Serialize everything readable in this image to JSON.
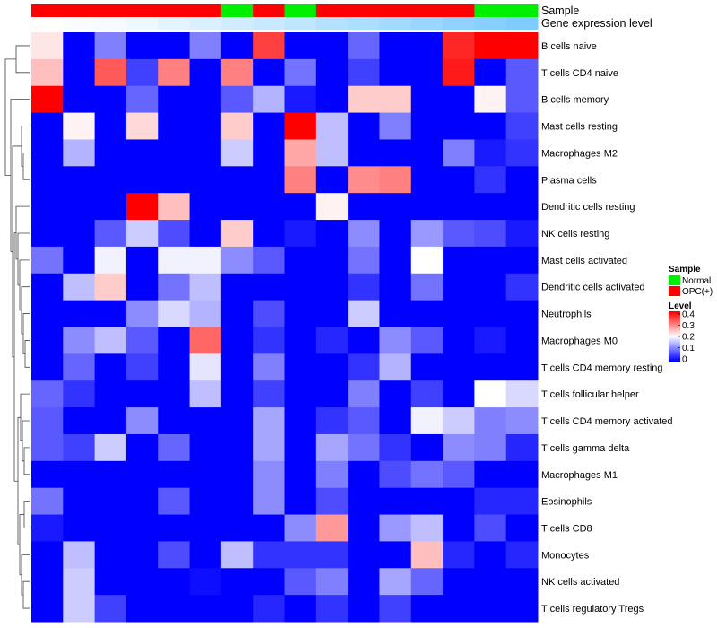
{
  "chart_data": {
    "type": "heatmap",
    "annotation_rows": [
      {
        "name": "Sample",
        "values": [
          "OPC(+)",
          "OPC(+)",
          "OPC(+)",
          "OPC(+)",
          "OPC(+)",
          "OPC(+)",
          "Normal",
          "OPC(+)",
          "Normal",
          "OPC(+)",
          "OPC(+)",
          "OPC(+)",
          "OPC(+)",
          "OPC(+)",
          "Normal",
          "Normal"
        ]
      },
      {
        "name": "Gene expression level",
        "values": [
          0.0,
          0.01,
          0.02,
          0.04,
          0.06,
          0.08,
          0.1,
          0.12,
          0.14,
          0.16,
          0.18,
          0.2,
          0.22,
          0.24,
          0.26,
          0.28
        ]
      }
    ],
    "row_labels": [
      "B cells naive",
      "T cells CD4 naive",
      "B cells memory",
      "Mast cells resting",
      "Macrophages M2",
      "Plasma cells",
      "Dendritic cells resting",
      "NK cells resting",
      "Mast cells activated",
      "Dendritic cells activated",
      "Neutrophils",
      "Macrophages M0",
      "T cells CD4 memory resting",
      "T cells follicular helper",
      "T cells CD4 memory activated",
      "T cells gamma delta",
      "Macrophages M1",
      "Eosinophils",
      "T cells CD8",
      "Monocytes",
      "NK cells activated",
      "T cells regulatory  Tregs"
    ],
    "values": [
      [
        0.22,
        0,
        0.1,
        0,
        0,
        0.1,
        0,
        0.35,
        0,
        0,
        0.08,
        0,
        0,
        0.37,
        0.4,
        0.4
      ],
      [
        0.25,
        0,
        0.33,
        0.05,
        0.3,
        0,
        0.3,
        0,
        0.09,
        0,
        0.05,
        0,
        0,
        0.38,
        0,
        0.07
      ],
      [
        0.4,
        0,
        0,
        0.08,
        0,
        0,
        0.07,
        0.14,
        0.02,
        0,
        0.24,
        0.24,
        0,
        0,
        0.21,
        0.07
      ],
      [
        0,
        0.21,
        0,
        0.23,
        0,
        0,
        0.24,
        0,
        0.4,
        0.15,
        0,
        0.1,
        0,
        0,
        0,
        0.05
      ],
      [
        0,
        0.14,
        0,
        0,
        0,
        0,
        0.16,
        0,
        0.27,
        0.15,
        0,
        0,
        0,
        0.1,
        0.02,
        0.04
      ],
      [
        0,
        0,
        0,
        0,
        0,
        0,
        0,
        0,
        0.3,
        0,
        0.29,
        0.3,
        0,
        0,
        0.04,
        0
      ],
      [
        0,
        0,
        0,
        0.4,
        0.25,
        0,
        0,
        0,
        0,
        0.21,
        0,
        0,
        0,
        0,
        0,
        0
      ],
      [
        0,
        0,
        0.07,
        0.16,
        0.06,
        0,
        0.24,
        0,
        0.02,
        0,
        0.11,
        0,
        0.12,
        0.07,
        0.06,
        0.02
      ],
      [
        0.09,
        0,
        0.19,
        0,
        0.19,
        0.19,
        0.11,
        0.07,
        0,
        0,
        0.09,
        0,
        0.2,
        0,
        0,
        0
      ],
      [
        0,
        0.15,
        0.24,
        0,
        0.09,
        0.15,
        0,
        0,
        0,
        0,
        0.04,
        0,
        0.09,
        0,
        0,
        0.04
      ],
      [
        0,
        0,
        0,
        0.11,
        0.17,
        0.14,
        0,
        0.06,
        0,
        0,
        0.16,
        0,
        0,
        0,
        0,
        0
      ],
      [
        0,
        0.11,
        0.15,
        0.07,
        0,
        0.32,
        0,
        0.04,
        0,
        0.03,
        0,
        0.11,
        0.07,
        0,
        0.02,
        0
      ],
      [
        0,
        0.08,
        0,
        0.05,
        0,
        0.18,
        0,
        0.1,
        0,
        0,
        0.04,
        0.14,
        0,
        0,
        0,
        0
      ],
      [
        0.08,
        0.04,
        0,
        0,
        0,
        0.15,
        0,
        0.05,
        0,
        0,
        0.1,
        0,
        0.05,
        0,
        0.2,
        0.17
      ],
      [
        0.07,
        0,
        0,
        0.11,
        0,
        0,
        0,
        0.13,
        0,
        0.04,
        0.07,
        0,
        0.19,
        0.16,
        0.1,
        0.11
      ],
      [
        0.07,
        0.05,
        0.16,
        0,
        0.08,
        0,
        0,
        0.13,
        0,
        0.13,
        0.09,
        0.04,
        0,
        0.11,
        0.1,
        0.03
      ],
      [
        0,
        0,
        0,
        0,
        0,
        0,
        0,
        0.11,
        0,
        0.1,
        0,
        0.06,
        0.09,
        0.07,
        0,
        0
      ],
      [
        0.09,
        0,
        0,
        0,
        0.07,
        0,
        0,
        0.11,
        0,
        0.06,
        0,
        0,
        0,
        0,
        0.03,
        0.03
      ],
      [
        0.02,
        0,
        0,
        0,
        0,
        0,
        0,
        0,
        0.11,
        0.28,
        0,
        0.12,
        0.15,
        0,
        0.06,
        0
      ],
      [
        0,
        0.15,
        0,
        0,
        0.06,
        0,
        0.15,
        0.04,
        0.04,
        0.04,
        0,
        0,
        0.25,
        0.03,
        0,
        0.03
      ],
      [
        0,
        0.16,
        0,
        0,
        0,
        0.01,
        0,
        0,
        0.07,
        0.1,
        0,
        0.13,
        0.08,
        0,
        0,
        0
      ],
      [
        0,
        0.16,
        0.05,
        0,
        0,
        0,
        0,
        0.03,
        0,
        0.04,
        0,
        0.05,
        0,
        0,
        0,
        0
      ]
    ],
    "color_scale": {
      "min": 0,
      "max": 0.4,
      "low": "#0000ff",
      "mid": "#ffffff",
      "high": "#ff0000"
    },
    "legend": {
      "placement": "right",
      "sample_title": "Sample",
      "sample_items": [
        {
          "label": "Normal",
          "color": "#00ee00"
        },
        {
          "label": "OPC(+)",
          "color": "#ff0000"
        }
      ],
      "level_title": "Level",
      "level_ticks": [
        "0.4",
        "0.3",
        "0.2",
        "0.1",
        "0"
      ]
    },
    "row_dendrogram": true,
    "grid": false
  }
}
